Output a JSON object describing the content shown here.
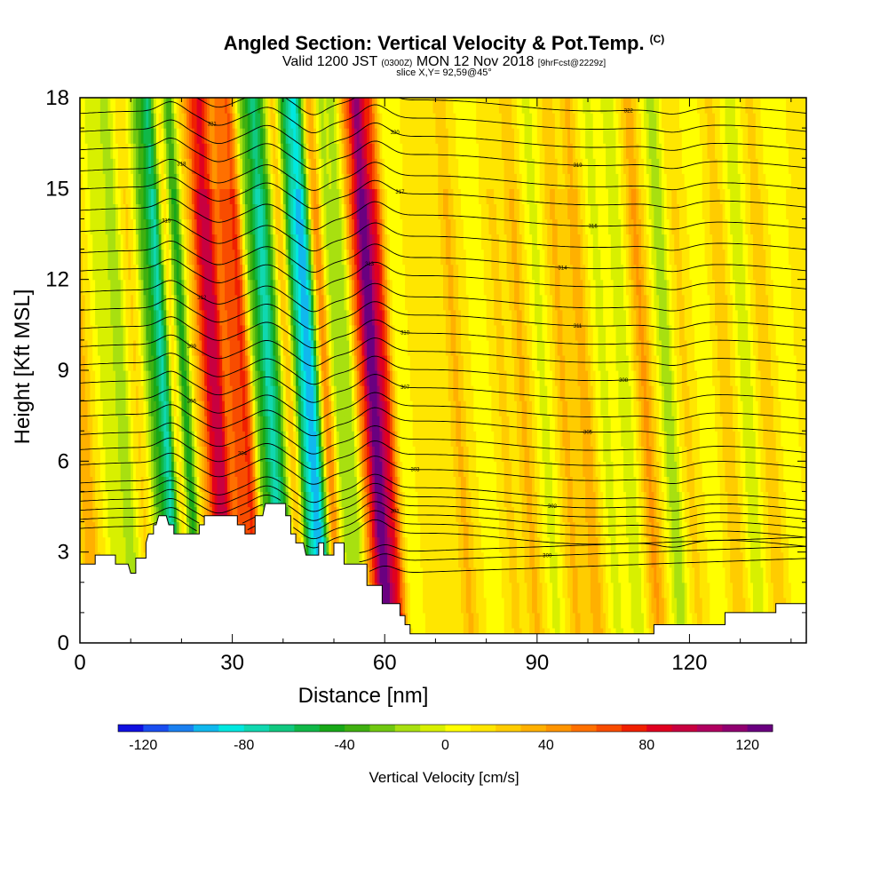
{
  "chart_data": {
    "type": "heatmap",
    "title": "Angled Section: Vertical Velocity & Pot.Temp.",
    "title_tag": "(C)",
    "subtitle_pre": "Valid 1200 JST ",
    "subtitle_z": "(0300Z)",
    "subtitle_mid": " MON 12 Nov 2018 ",
    "subtitle_fcst": "[9hrFcst@2229z]",
    "slice_label": "slice X,Y= 92,59@45°",
    "xlabel": "Distance [nm]",
    "ylabel": "Height [Kft MSL]",
    "xlim": [
      0,
      143
    ],
    "ylim": [
      0,
      18
    ],
    "x_ticks": [
      "0",
      "30",
      "60",
      "90",
      "120"
    ],
    "y_ticks": [
      "0",
      "3",
      "6",
      "9",
      "12",
      "15",
      "18"
    ],
    "colorbar": {
      "label": "Vertical Velocity [cm/s]",
      "ticks": [
        "-120",
        "-80",
        "-40",
        "0",
        "40",
        "80",
        "120"
      ],
      "range": [
        -130,
        130
      ],
      "colors": [
        "#1010e0",
        "#1a4ef0",
        "#1b80f0",
        "#10b8ee",
        "#00e8e0",
        "#10d8b0",
        "#10c880",
        "#10b848",
        "#18a818",
        "#40b010",
        "#70c810",
        "#a8e010",
        "#d8f000",
        "#ffff00",
        "#ffe600",
        "#ffcc00",
        "#ffb000",
        "#ff9400",
        "#ff7000",
        "#f84c00",
        "#f02000",
        "#e00020",
        "#c80040",
        "#b00060",
        "#900070",
        "#6a0080"
      ]
    },
    "background_value": 12,
    "velocity_features": [
      {
        "x": 1,
        "v": 28
      },
      {
        "x": 6,
        "v": -20
      },
      {
        "x": 9,
        "v": -30
      },
      {
        "x": 12,
        "v": 10
      },
      {
        "x": 15,
        "v": -40
      },
      {
        "x": 17.5,
        "v": -85
      },
      {
        "x": 19.5,
        "v": 30
      },
      {
        "x": 21.5,
        "v": -70
      },
      {
        "x": 23,
        "v": 20
      },
      {
        "x": 26,
        "v": 55
      },
      {
        "x": 28,
        "v": 70
      },
      {
        "x": 31,
        "v": 45
      },
      {
        "x": 33.5,
        "v": 60
      },
      {
        "x": 35.5,
        "v": -40
      },
      {
        "x": 38,
        "v": -75
      },
      {
        "x": 40,
        "v": -40
      },
      {
        "x": 42,
        "v": 35
      },
      {
        "x": 44,
        "v": -60
      },
      {
        "x": 46,
        "v": -80
      },
      {
        "x": 47.5,
        "v": -50
      },
      {
        "x": 49,
        "v": 60
      },
      {
        "x": 51,
        "v": -30
      },
      {
        "x": 54,
        "v": -30
      },
      {
        "x": 56,
        "v": 40
      },
      {
        "x": 58.5,
        "v": 115
      },
      {
        "x": 61,
        "v": 60
      },
      {
        "x": 64,
        "v": -10
      },
      {
        "x": 70,
        "v": 5
      },
      {
        "x": 75,
        "v": 20
      },
      {
        "x": 80,
        "v": -10
      },
      {
        "x": 84,
        "v": 10
      },
      {
        "x": 88,
        "v": 20
      },
      {
        "x": 92,
        "v": -15
      },
      {
        "x": 96,
        "v": 20
      },
      {
        "x": 100,
        "v": 25
      },
      {
        "x": 104,
        "v": -15
      },
      {
        "x": 108,
        "v": -20
      },
      {
        "x": 112,
        "v": 30
      },
      {
        "x": 116.5,
        "v": -30
      },
      {
        "x": 120,
        "v": 10
      },
      {
        "x": 124,
        "v": -10
      },
      {
        "x": 128,
        "v": 15
      },
      {
        "x": 132,
        "v": -20
      },
      {
        "x": 136,
        "v": 15
      },
      {
        "x": 140,
        "v": -10
      }
    ],
    "terrain": [
      [
        0,
        2.6
      ],
      [
        3,
        2.6
      ],
      [
        3,
        2.9
      ],
      [
        7,
        2.9
      ],
      [
        7,
        2.6
      ],
      [
        9.5,
        2.6
      ],
      [
        10,
        2.3
      ],
      [
        11,
        2.3
      ],
      [
        11,
        2.8
      ],
      [
        13,
        2.8
      ],
      [
        13,
        3.3
      ],
      [
        13.5,
        3.6
      ],
      [
        14.5,
        3.6
      ],
      [
        14.5,
        3.9
      ],
      [
        15,
        3.9
      ],
      [
        15.5,
        4.2
      ],
      [
        17,
        4.2
      ],
      [
        17.5,
        3.9
      ],
      [
        18.5,
        3.9
      ],
      [
        18.5,
        3.6
      ],
      [
        23.5,
        3.6
      ],
      [
        23.5,
        3.9
      ],
      [
        24.5,
        3.9
      ],
      [
        24.5,
        4.2
      ],
      [
        31,
        4.2
      ],
      [
        31,
        3.9
      ],
      [
        32.5,
        3.9
      ],
      [
        32.5,
        3.6
      ],
      [
        34.5,
        3.6
      ],
      [
        34.5,
        4.2
      ],
      [
        36,
        4.2
      ],
      [
        36.5,
        4.6
      ],
      [
        40.5,
        4.6
      ],
      [
        40.5,
        4.2
      ],
      [
        41.5,
        4.2
      ],
      [
        41.5,
        3.6
      ],
      [
        42.5,
        3.6
      ],
      [
        42.5,
        3.3
      ],
      [
        44,
        3.3
      ],
      [
        44.5,
        2.9
      ],
      [
        47,
        2.9
      ],
      [
        47,
        3.3
      ],
      [
        48,
        3.3
      ],
      [
        48,
        2.9
      ],
      [
        50,
        2.9
      ],
      [
        50,
        3.3
      ],
      [
        52,
        3.3
      ],
      [
        52,
        2.6
      ],
      [
        56.5,
        2.6
      ],
      [
        56.5,
        1.9
      ],
      [
        59.5,
        1.9
      ],
      [
        59.5,
        1.3
      ],
      [
        63,
        1.3
      ],
      [
        63,
        0.9
      ],
      [
        64,
        0.9
      ],
      [
        64,
        0.6
      ],
      [
        65,
        0.6
      ],
      [
        65,
        0.3
      ],
      [
        113,
        0.3
      ],
      [
        113,
        0.6
      ],
      [
        127,
        0.6
      ],
      [
        127,
        1.0
      ],
      [
        137,
        1.0
      ],
      [
        137,
        1.3
      ],
      [
        143,
        1.3
      ]
    ],
    "theta_levels": [
      {
        "y0": 3.5,
        "label": "",
        "lx": 0
      },
      {
        "y0": 3.8,
        "label": "",
        "lx": 0
      },
      {
        "y0": 4.1,
        "label": "301",
        "lx": 62
      },
      {
        "y0": 4.4,
        "label": "",
        "lx": 0
      },
      {
        "y0": 4.7,
        "label": "302",
        "lx": 93
      },
      {
        "y0": 5.0,
        "label": "",
        "lx": 0
      },
      {
        "y0": 5.6,
        "label": "303",
        "lx": 66
      },
      {
        "y0": 6.1,
        "label": "304",
        "lx": 32
      },
      {
        "y0": 6.6,
        "label": "",
        "lx": 0
      },
      {
        "y0": 7.2,
        "label": "305",
        "lx": 100
      },
      {
        "y0": 7.7,
        "label": "306",
        "lx": 22
      },
      {
        "y0": 8.3,
        "label": "307",
        "lx": 64
      },
      {
        "y0": 8.9,
        "label": "308",
        "lx": 107
      },
      {
        "y0": 9.5,
        "label": "309",
        "lx": 22
      },
      {
        "y0": 10.1,
        "label": "310",
        "lx": 64
      },
      {
        "y0": 10.7,
        "label": "311",
        "lx": 98
      },
      {
        "y0": 11.3,
        "label": "312",
        "lx": 24
      },
      {
        "y0": 12.0,
        "label": "313",
        "lx": 57
      },
      {
        "y0": 12.6,
        "label": "314",
        "lx": 95
      },
      {
        "y0": 13.3,
        "label": "315",
        "lx": 17
      },
      {
        "y0": 14.0,
        "label": "316",
        "lx": 101
      },
      {
        "y0": 14.7,
        "label": "317",
        "lx": 63
      },
      {
        "y0": 15.3,
        "label": "318",
        "lx": 20
      },
      {
        "y0": 16.0,
        "label": "319",
        "lx": 98
      },
      {
        "y0": 16.6,
        "label": "320",
        "lx": 62
      },
      {
        "y0": 17.2,
        "label": "321",
        "lx": 26
      },
      {
        "y0": 17.8,
        "label": "322",
        "lx": 108
      }
    ],
    "low_theta_levels": [
      {
        "y0": 2.5,
        "label": "",
        "lx": 0
      },
      {
        "y0": 2.9,
        "label": "300",
        "lx": 92
      },
      {
        "y0": 3.2,
        "label": "",
        "lx": 0
      }
    ],
    "grid": false
  }
}
